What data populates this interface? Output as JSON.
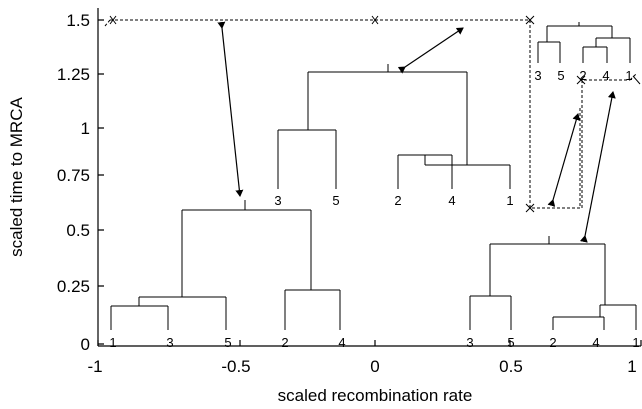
{
  "axes": {
    "xlabel": "scaled recombination rate",
    "ylabel": "scaled time to MRCA",
    "xticks": [
      "-1",
      "-0.5",
      "0",
      "0.5",
      "1"
    ],
    "yticks": [
      "0",
      "0.25",
      "0.5",
      "0.75",
      "1",
      "1.25",
      "1.5"
    ]
  },
  "trees": {
    "bottom_left_leaves": [
      "1",
      "3",
      "5",
      "2",
      "4"
    ],
    "center_leaves": [
      "3",
      "5",
      "2",
      "4",
      "1"
    ],
    "bottom_right_leaves": [
      "3",
      "5",
      "2",
      "4",
      "1"
    ],
    "inset_leaves": [
      "3",
      "5",
      "2",
      "4",
      "1"
    ]
  }
}
